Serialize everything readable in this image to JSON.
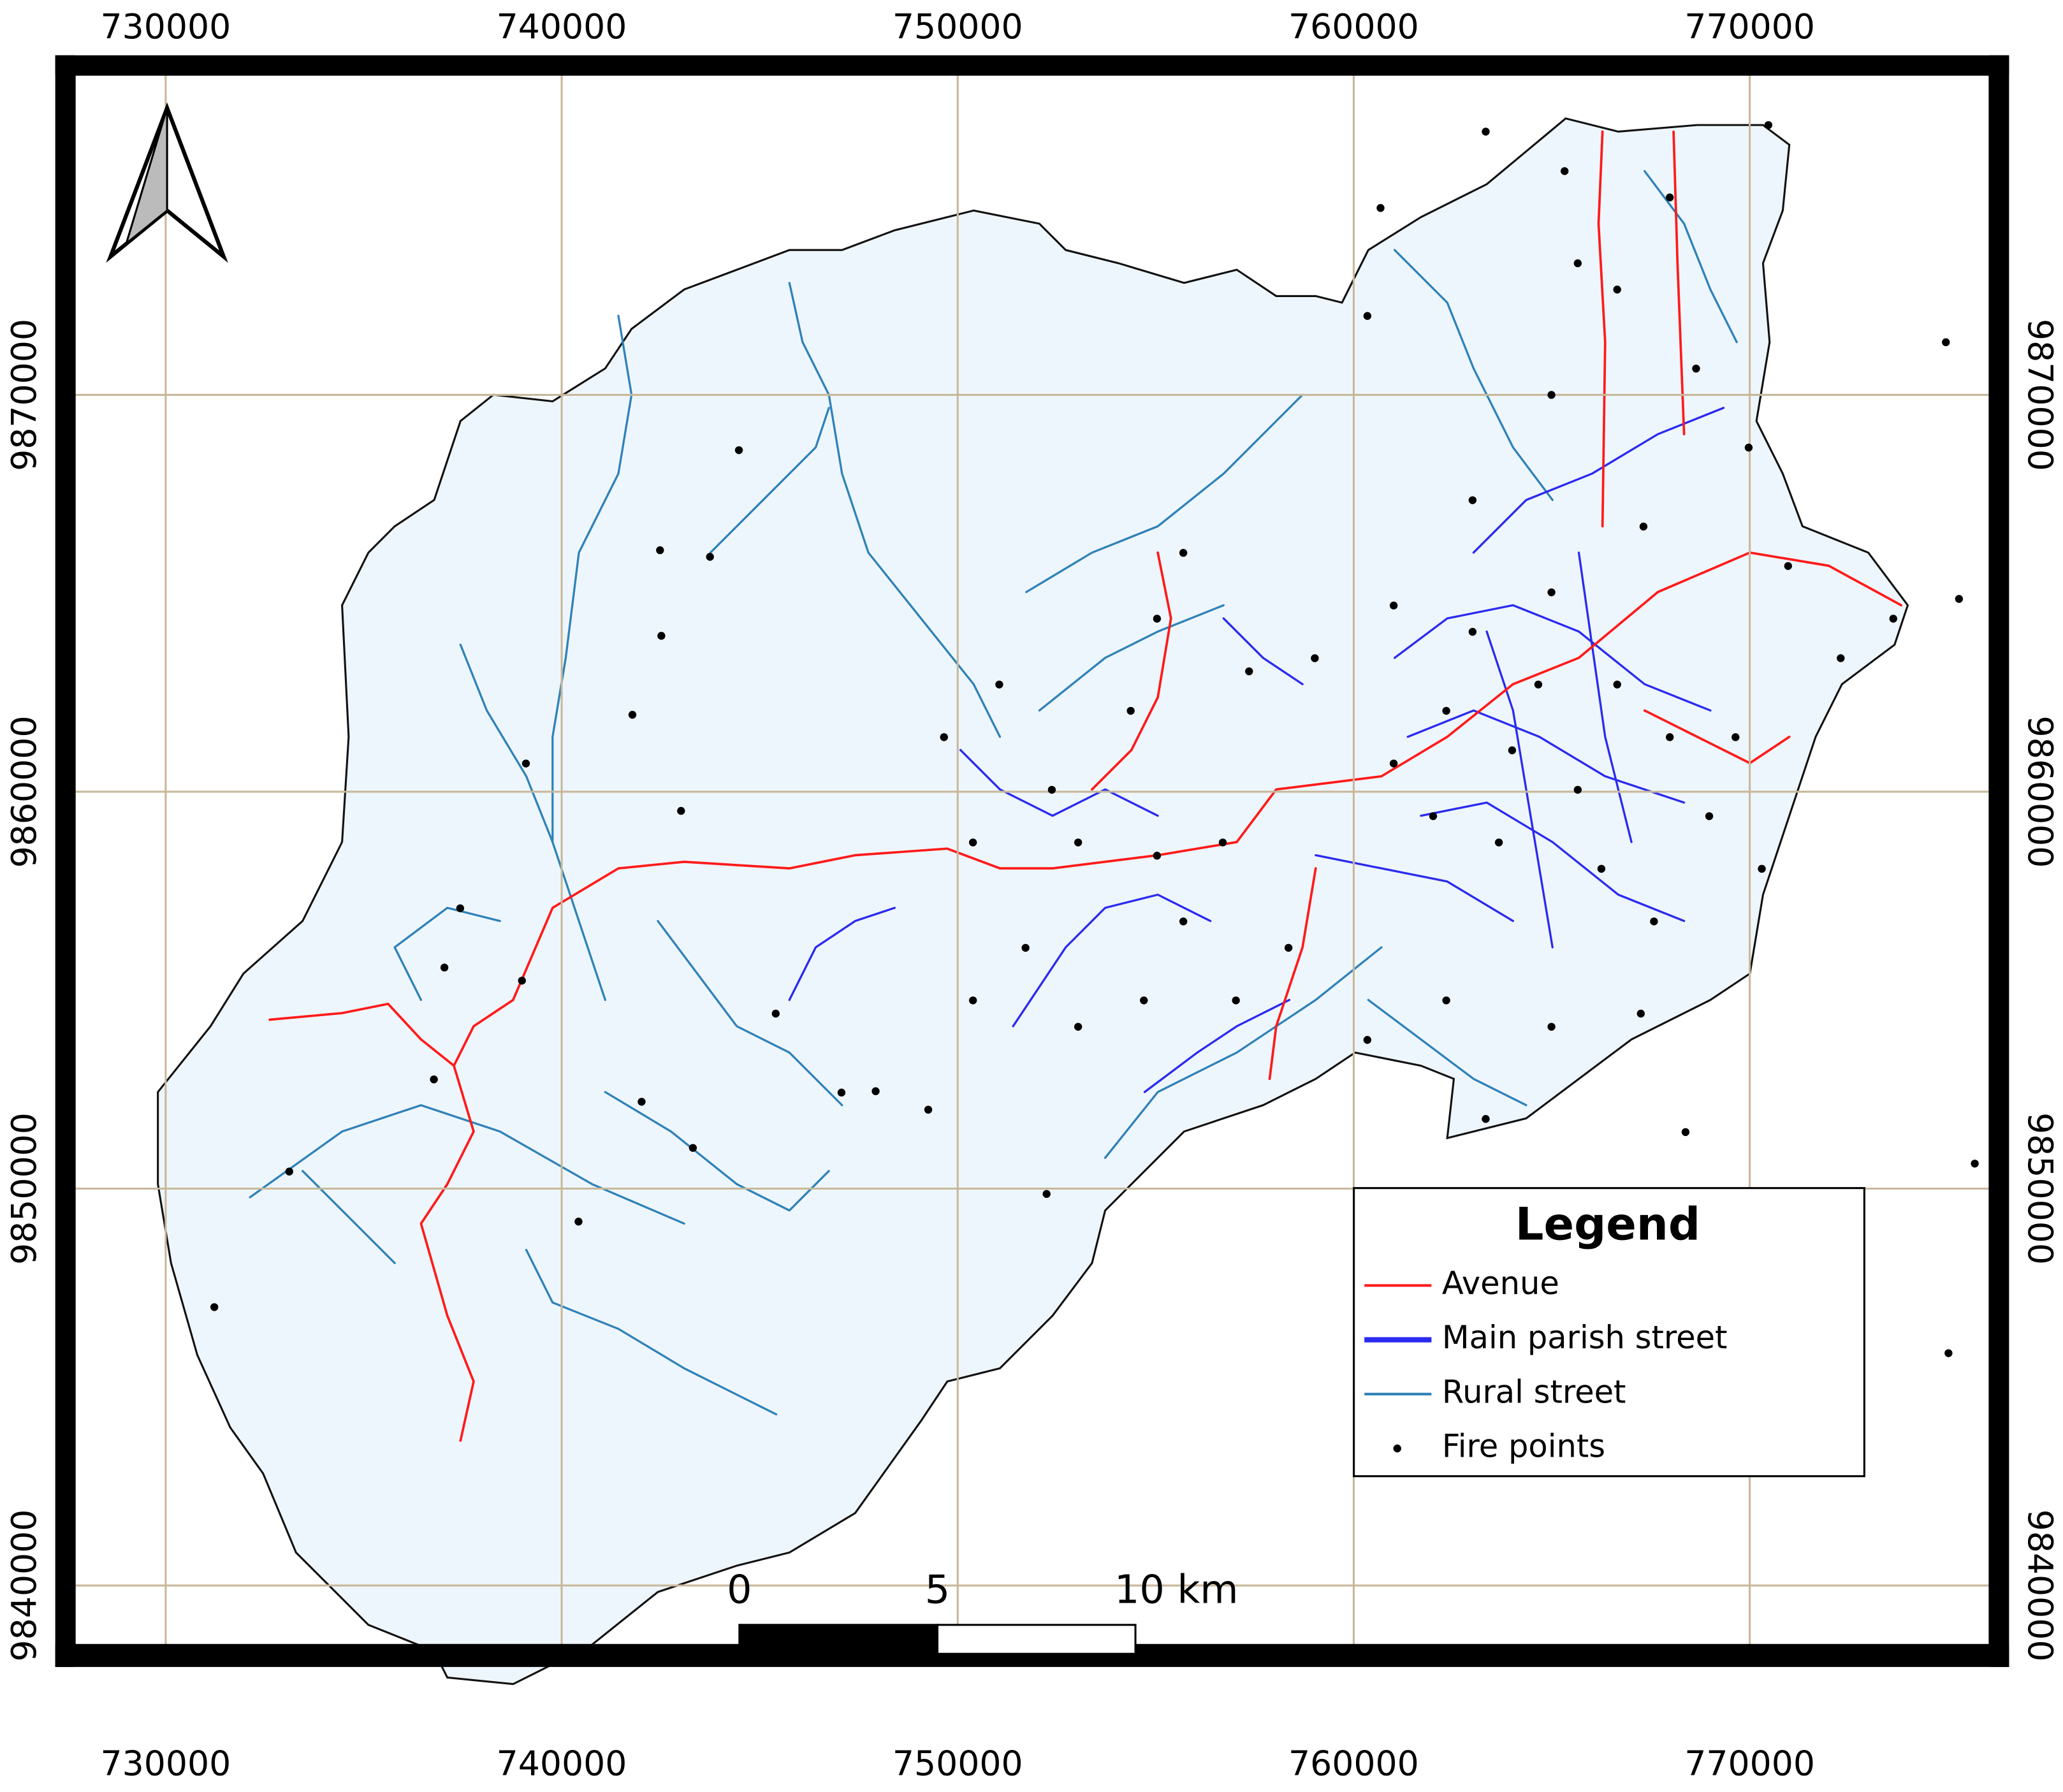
{
  "map": {
    "xlim": [
      727710,
      776050
    ],
    "ylim": [
      9838510,
      9878060
    ],
    "xticks": [
      730000,
      740000,
      750000,
      760000,
      770000
    ],
    "yticks": [
      9840000,
      9850000,
      9860000,
      9870000
    ],
    "grid": true,
    "grid_color": "#c8b89a",
    "fill_color": "#eef6fd",
    "fire_points": {
      "x": [
        744475,
        742483,
        743745,
        742516,
        741786,
        743014,
        739097,
        737437,
        737038,
        738997,
        736773,
        733121,
        731228,
        740425,
        742018,
        743313,
        747928,
        749256,
        752244,
        768379,
        774953,
        775285,
        775683,
        775019,
        763333,
        760677,
        765657,
        768645,
        767317,
        764993,
        763001,
        762337,
        764000,
        765657,
        763665,
        766254,
        767582,
        767250,
        764993,
        762337,
        763333,
        769641,
        770305,
        772297,
        773625,
        770969,
        769973,
        761009,
        759017,
        757357,
        755697,
        755033,
        754369,
        751049,
        752377,
        750385,
        753041,
        755033,
        756693,
        751713,
        753041,
        754701,
        755697,
        757025,
        758353,
        760345,
        761009,
        762005,
        764661,
        766653,
        767981,
        768977,
        763001,
        764993,
        766653,
        767981,
        770471,
        760345,
        765325,
        747065,
        745405,
        749654,
        750385
      ],
      "y": [
        9868607,
        9866086,
        9865920,
        9863930,
        9861940,
        9859518,
        9860712,
        9857064,
        9855571,
        9855240,
        9852752,
        9850430,
        9847014,
        9849169,
        9852188,
        9851026,
        9852454,
        9851989,
        9849866,
        9851424,
        9871327,
        9864859,
        9850630,
        9845853,
        9876634,
        9874710,
        9873317,
        9870663,
        9866683,
        9865025,
        9864030,
        9862039,
        9861044,
        9860049,
        9858722,
        9858059,
        9856732,
        9854410,
        9854078,
        9854742,
        9851756,
        9861376,
        9858059,
        9863366,
        9864361,
        9865688,
        9868673,
        9864693,
        9863366,
        9863034,
        9866020,
        9864361,
        9862039,
        9862702,
        9860049,
        9858722,
        9858722,
        9858390,
        9858722,
        9856068,
        9854078,
        9854742,
        9856732,
        9854742,
        9856068,
        9853747,
        9860712,
        9859385,
        9862702,
        9862702,
        9861376,
        9859385,
        9867346,
        9870000,
        9872654,
        9874976,
        9876800,
        9871990,
        9875639,
        9852420,
        9854410,
        9861376,
        9854742
      ]
    }
  },
  "legend": {
    "title": "Legend",
    "items": [
      {
        "label": "Avenue",
        "color": "#ff1a1a",
        "kind": "line",
        "width": 2
      },
      {
        "label": "Main parish street",
        "color": "#2a2af0",
        "kind": "line",
        "width": 4
      },
      {
        "label": "Rural street",
        "color": "#2f82b8",
        "kind": "line",
        "width": 2
      },
      {
        "label": "Fire points",
        "color": "#000000",
        "kind": "point",
        "width": 3
      }
    ]
  },
  "scale_bar": {
    "ticks": [
      0,
      5,
      {
        "value": 10,
        "label": "10 km"
      }
    ],
    "colors": [
      "#000000",
      "#ffffff"
    ]
  }
}
